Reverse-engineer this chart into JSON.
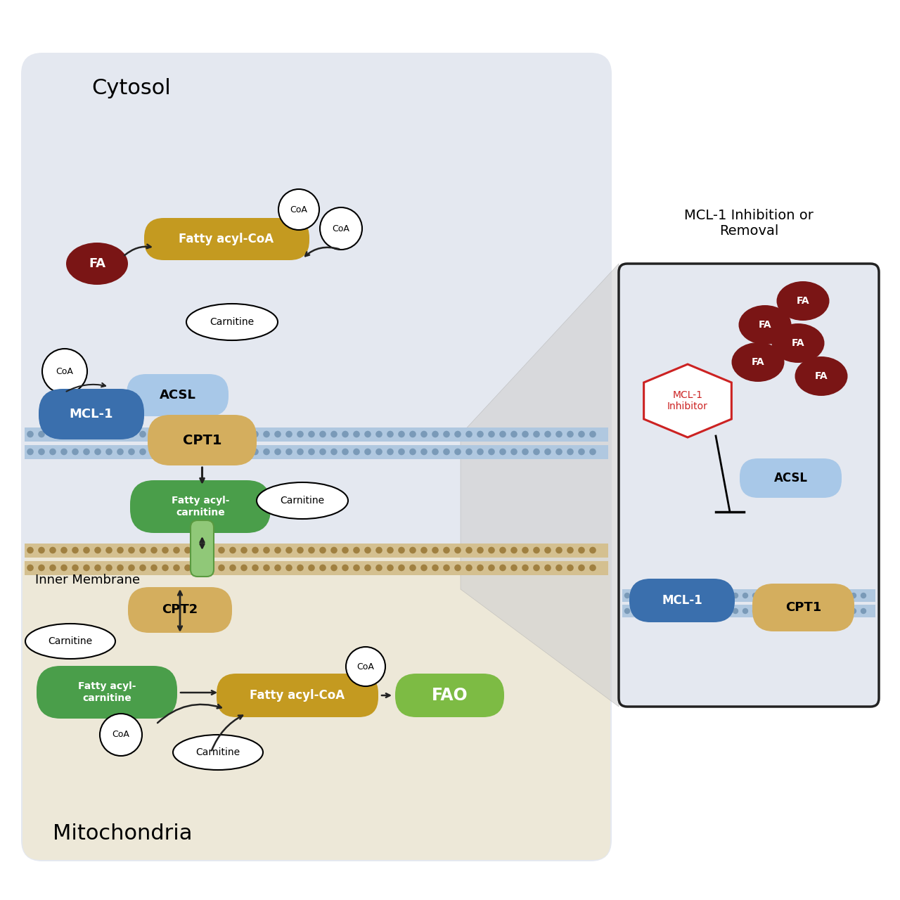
{
  "bg_color": "#ffffff",
  "main_panel_color": "#e4e8f0",
  "cytosol_label": "Cytosol",
  "inner_membrane_label": "Inner Membrane",
  "mitochondria_label": "Mitochondria",
  "inset_title": "MCL-1 Inhibition or\nRemoval",
  "inset_bg": "#e4e8f0",
  "mcl1_blue": "#3a6fad",
  "acsl_lightblue": "#a8c8e8",
  "cpt1_gold": "#d4ae5e",
  "fatty_acyl_coa_gold": "#c49a20",
  "fatty_acyl_carnitine_green": "#4a9e4a",
  "fao_green": "#7dbb44",
  "fa_darkred": "#7a1515",
  "membrane_blue": "#b0c8e0",
  "membrane_dot_blue": "#7a9ab8",
  "membrane_tan": "#d4c090",
  "membrane_dot_tan": "#a08040",
  "transporter_green": "#90c878",
  "transporter_edge": "#5a9a40",
  "mcl1_inhibitor_red": "#cc2222",
  "connector_gray": "#c8c8c8",
  "inset_edge": "#222222",
  "arrow_color": "#222222"
}
